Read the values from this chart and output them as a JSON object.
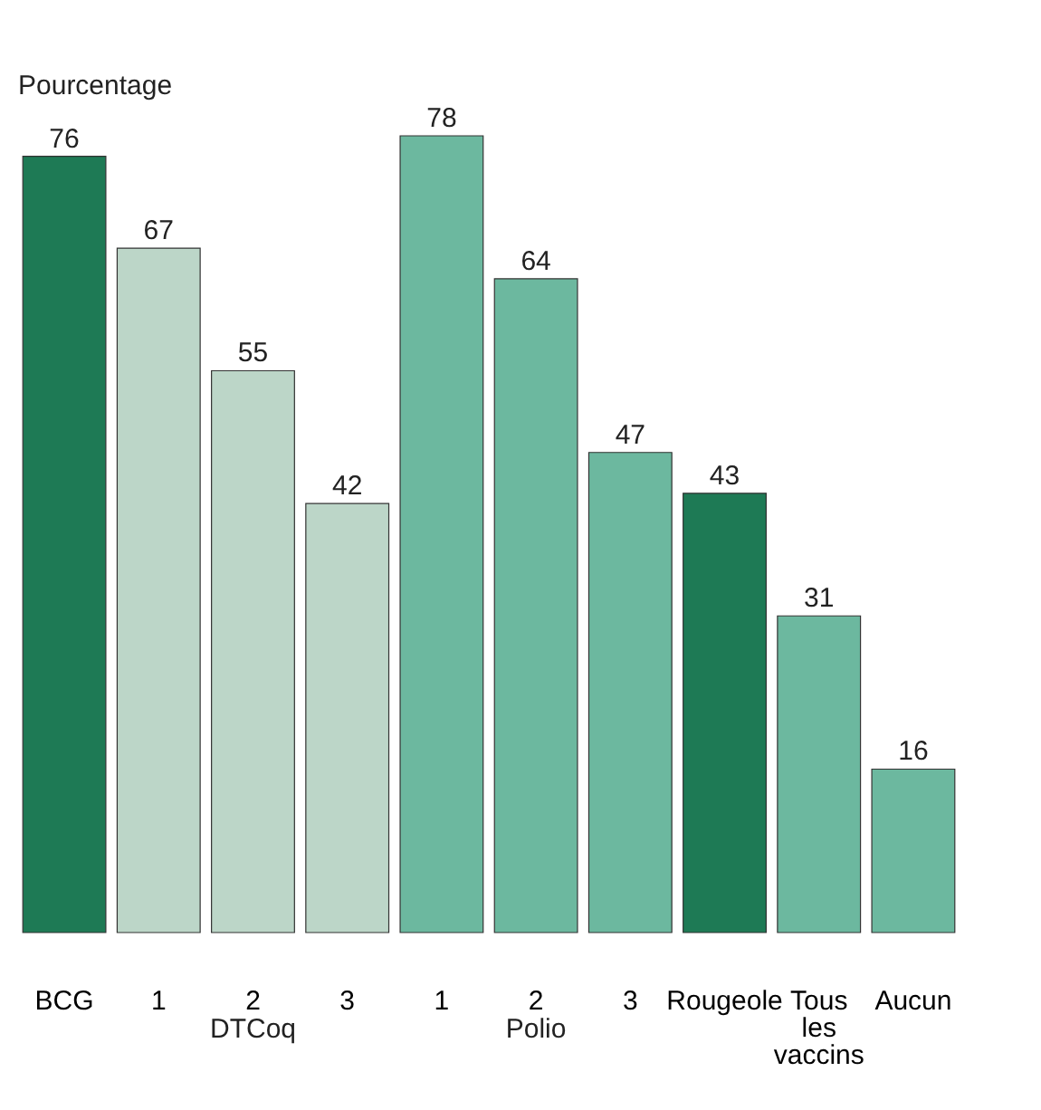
{
  "chart_data": {
    "type": "bar",
    "ylabel": "Pourcentage",
    "categories": [
      "BCG",
      "1",
      "2",
      "3",
      "1",
      "2",
      "3",
      "Rougeole",
      "Tous les vaccins",
      "Aucun"
    ],
    "values": [
      76,
      67,
      55,
      42,
      78,
      64,
      47,
      43,
      31,
      16
    ],
    "colors": [
      "#1e7a55",
      "#bcd6c8",
      "#bcd6c8",
      "#bcd6c8",
      "#6cb89f",
      "#6cb89f",
      "#6cb89f",
      "#1e7a55",
      "#6cb89f",
      "#6cb89f"
    ],
    "data_labels": true,
    "annotations": [
      "DTCoq",
      "Polio"
    ]
  }
}
